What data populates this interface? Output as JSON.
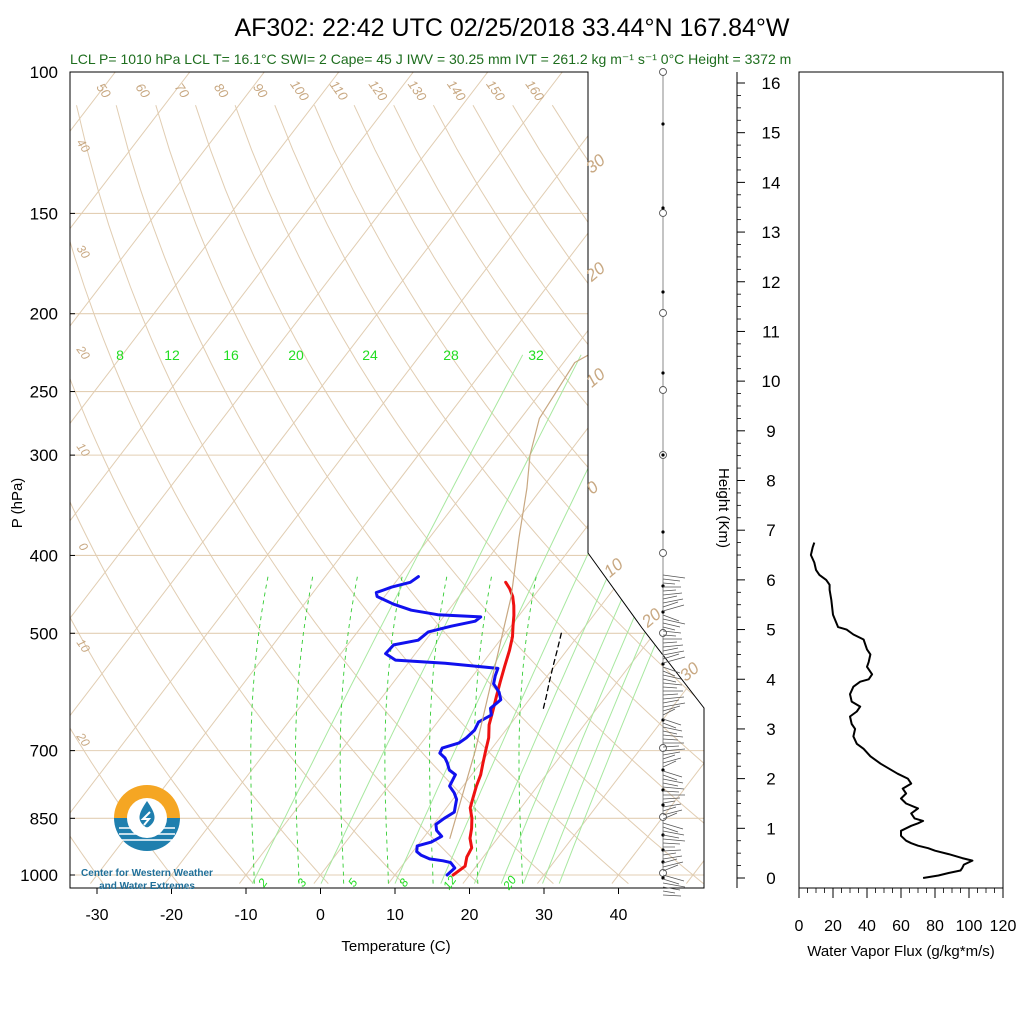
{
  "title": "AF302: 22:42 UTC 02/25/2018  33.44°N 167.84°W",
  "stats_line": "LCL P= 1010 hPa  LCL T= 16.1°C  SWI= 2  Cape= 45 J  IWV = 30.25 mm  IVT = 261.2 kg m⁻¹ s⁻¹  0°C Height = 3372 m",
  "logo": {
    "line1": "Center for Western Weather",
    "line2": "and Water Extremes",
    "colors": {
      "sun": "#f5a623",
      "water": "#1f7fae"
    }
  },
  "chart_data": [
    {
      "type": "line",
      "name": "skew-t",
      "xlabel": "Temperature (C)",
      "ylabel": "P (hPa)",
      "xlim": [
        -34,
        50
      ],
      "ylim": [
        1025,
        100
      ],
      "y_scale": "log",
      "x_ticks": [
        -30,
        -20,
        -10,
        0,
        10,
        20,
        30,
        40
      ],
      "p_ticks": [
        100,
        150,
        200,
        250,
        300,
        400,
        500,
        700,
        850,
        1000
      ],
      "dry_adiabat_labels": [
        "50",
        "60",
        "70",
        "80",
        "90",
        "100",
        "110",
        "120",
        "130",
        "140",
        "150",
        "160"
      ],
      "isotherm_labels_left": [
        "40",
        "30",
        "20",
        "10",
        "0",
        "10",
        "20"
      ],
      "isotherm_labels_right": [
        "30",
        "20",
        "10",
        "0",
        "10",
        "20",
        "30"
      ],
      "mixing_ratio_labels": [
        "8",
        "12",
        "16",
        "20",
        "24",
        "28",
        "32"
      ],
      "moist_adiabat_labels": [
        "2",
        "3",
        "5",
        "8",
        "12",
        "20"
      ],
      "series": [
        {
          "key": "temperature",
          "color": "#ee1111",
          "points": [
            [
              17.8,
              1000
            ],
            [
              18.5,
              975
            ],
            [
              17.8,
              950
            ],
            [
              17.5,
              925
            ],
            [
              16.3,
              900
            ],
            [
              15.5,
              875
            ],
            [
              14.5,
              850
            ],
            [
              13.2,
              825
            ],
            [
              12.5,
              800
            ],
            [
              11.8,
              775
            ],
            [
              11.2,
              750
            ],
            [
              10.3,
              725
            ],
            [
              9.4,
              700
            ],
            [
              8.5,
              675
            ],
            [
              7.2,
              650
            ],
            [
              6.3,
              625
            ],
            [
              5.3,
              600
            ],
            [
              4.3,
              575
            ],
            [
              3.3,
              550
            ],
            [
              2.3,
              525
            ],
            [
              1.3,
              505
            ],
            [
              0.3,
              490
            ],
            [
              -0.7,
              475
            ],
            [
              -1.7,
              462
            ],
            [
              -2.8,
              450
            ],
            [
              -4.0,
              440
            ],
            [
              -5.2,
              432
            ]
          ]
        },
        {
          "key": "dewpoint",
          "color": "#1111ee",
          "points": [
            [
              17.0,
              1000
            ],
            [
              17.3,
              980
            ],
            [
              16.2,
              965
            ],
            [
              15.0,
              960
            ],
            [
              13.0,
              955
            ],
            [
              11.5,
              945
            ],
            [
              10.5,
              935
            ],
            [
              10.0,
              920
            ],
            [
              11.5,
              910
            ],
            [
              12.3,
              895
            ],
            [
              11.0,
              880
            ],
            [
              10.3,
              865
            ],
            [
              10.8,
              850
            ],
            [
              11.5,
              835
            ],
            [
              11.0,
              820
            ],
            [
              10.5,
              805
            ],
            [
              9.5,
              790
            ],
            [
              8.2,
              775
            ],
            [
              7.8,
              750
            ],
            [
              6.5,
              740
            ],
            [
              5.5,
              725
            ],
            [
              4.7,
              715
            ],
            [
              3.5,
              705
            ],
            [
              3.3,
              695
            ],
            [
              5.0,
              685
            ],
            [
              5.5,
              675
            ],
            [
              5.8,
              660
            ],
            [
              5.5,
              645
            ],
            [
              6.5,
              632
            ],
            [
              5.7,
              620
            ],
            [
              6.2,
              605
            ],
            [
              5.2,
              592
            ],
            [
              3.6,
              578
            ],
            [
              3.0,
              565
            ],
            [
              2.6,
              553
            ],
            [
              -5.0,
              545
            ],
            [
              -12.0,
              540
            ],
            [
              -14.0,
              530
            ],
            [
              -13.8,
              517
            ],
            [
              -11.0,
              510
            ],
            [
              -10.5,
              498
            ],
            [
              -8.0,
              490
            ],
            [
              -5.3,
              483
            ],
            [
              -5.0,
              477
            ],
            [
              -11.0,
              474
            ],
            [
              -15.0,
              468
            ],
            [
              -18.0,
              460
            ],
            [
              -21.0,
              450
            ],
            [
              -21.5,
              445
            ],
            [
              -20.0,
              438
            ],
            [
              -18.0,
              432
            ],
            [
              -17.5,
              425
            ]
          ]
        },
        {
          "key": "parcel",
          "color": "#000000",
          "dash": true,
          "points": [
            [
              7.5,
              500
            ],
            [
              8.7,
              525
            ],
            [
              9.8,
              550
            ],
            [
              10.9,
              575
            ],
            [
              12.0,
              600
            ],
            [
              13.0,
              625
            ]
          ]
        },
        {
          "key": "environment-lapse",
          "color": "#c8a882",
          "points": [
            [
              13.6,
              900
            ],
            [
              8.0,
              700
            ],
            [
              2.0,
              550
            ],
            [
              -3.0,
              450
            ],
            [
              -8.0,
              380
            ],
            [
              -12.0,
              330
            ],
            [
              -15.0,
              300
            ],
            [
              -17.5,
              270
            ],
            [
              -18.5,
              230
            ],
            [
              -14.0,
              210
            ],
            [
              -8.0,
              190
            ],
            [
              0.0,
              165
            ],
            [
              10.0,
              135
            ],
            [
              20.0,
              115
            ],
            [
              25.0,
              105
            ]
          ]
        }
      ]
    },
    {
      "type": "line",
      "name": "height-axis",
      "ylabel": "Height (Km)",
      "ylim": [
        0,
        16
      ],
      "ticks": [
        0,
        1,
        2,
        3,
        4,
        5,
        6,
        7,
        8,
        9,
        10,
        11,
        12,
        13,
        14,
        15,
        16
      ]
    },
    {
      "type": "line",
      "name": "water-vapor-flux",
      "xlabel": "Water Vapor Flux (g/kg*m/s)",
      "xlim": [
        0,
        120
      ],
      "ylim": [
        0,
        16
      ],
      "x_ticks": [
        0,
        20,
        40,
        60,
        80,
        100,
        120
      ],
      "series": [
        {
          "key": "flux",
          "color": "#000000",
          "points": [
            [
              73,
              0.0
            ],
            [
              82,
              0.05
            ],
            [
              88,
              0.1
            ],
            [
              95,
              0.15
            ],
            [
              96,
              0.2
            ],
            [
              97,
              0.27
            ],
            [
              102,
              0.35
            ],
            [
              96,
              0.4
            ],
            [
              88,
              0.48
            ],
            [
              80,
              0.55
            ],
            [
              76,
              0.6
            ],
            [
              70,
              0.65
            ],
            [
              66,
              0.7
            ],
            [
              63,
              0.75
            ],
            [
              60,
              0.85
            ],
            [
              60,
              0.95
            ],
            [
              66,
              1.05
            ],
            [
              70,
              1.1
            ],
            [
              73,
              1.15
            ],
            [
              68,
              1.2
            ],
            [
              66,
              1.3
            ],
            [
              70,
              1.4
            ],
            [
              63,
              1.5
            ],
            [
              60,
              1.6
            ],
            [
              63,
              1.7
            ],
            [
              61,
              1.8
            ],
            [
              66,
              1.9
            ],
            [
              64,
              2.0
            ],
            [
              58,
              2.1
            ],
            [
              53,
              2.2
            ],
            [
              48,
              2.3
            ],
            [
              42,
              2.45
            ],
            [
              38,
              2.6
            ],
            [
              34,
              2.7
            ],
            [
              32,
              2.85
            ],
            [
              33,
              3.0
            ],
            [
              31,
              3.1
            ],
            [
              30,
              3.25
            ],
            [
              34,
              3.35
            ],
            [
              36,
              3.45
            ],
            [
              31,
              3.55
            ],
            [
              30,
              3.7
            ],
            [
              32,
              3.85
            ],
            [
              36,
              3.95
            ],
            [
              41,
              4.0
            ],
            [
              43,
              4.1
            ],
            [
              40,
              4.25
            ],
            [
              41,
              4.35
            ],
            [
              42,
              4.5
            ],
            [
              40,
              4.6
            ],
            [
              39,
              4.7
            ],
            [
              38,
              4.8
            ],
            [
              35,
              4.85
            ],
            [
              32,
              4.9
            ],
            [
              28,
              5.0
            ],
            [
              23,
              5.05
            ],
            [
              20,
              5.3
            ],
            [
              19,
              5.6
            ],
            [
              18,
              5.8
            ],
            [
              18,
              5.9
            ],
            [
              16,
              6.0
            ],
            [
              12,
              6.1
            ],
            [
              10,
              6.2
            ],
            [
              9,
              6.35
            ],
            [
              7,
              6.5
            ],
            [
              8,
              6.65
            ],
            [
              9,
              6.75
            ]
          ]
        }
      ]
    }
  ]
}
